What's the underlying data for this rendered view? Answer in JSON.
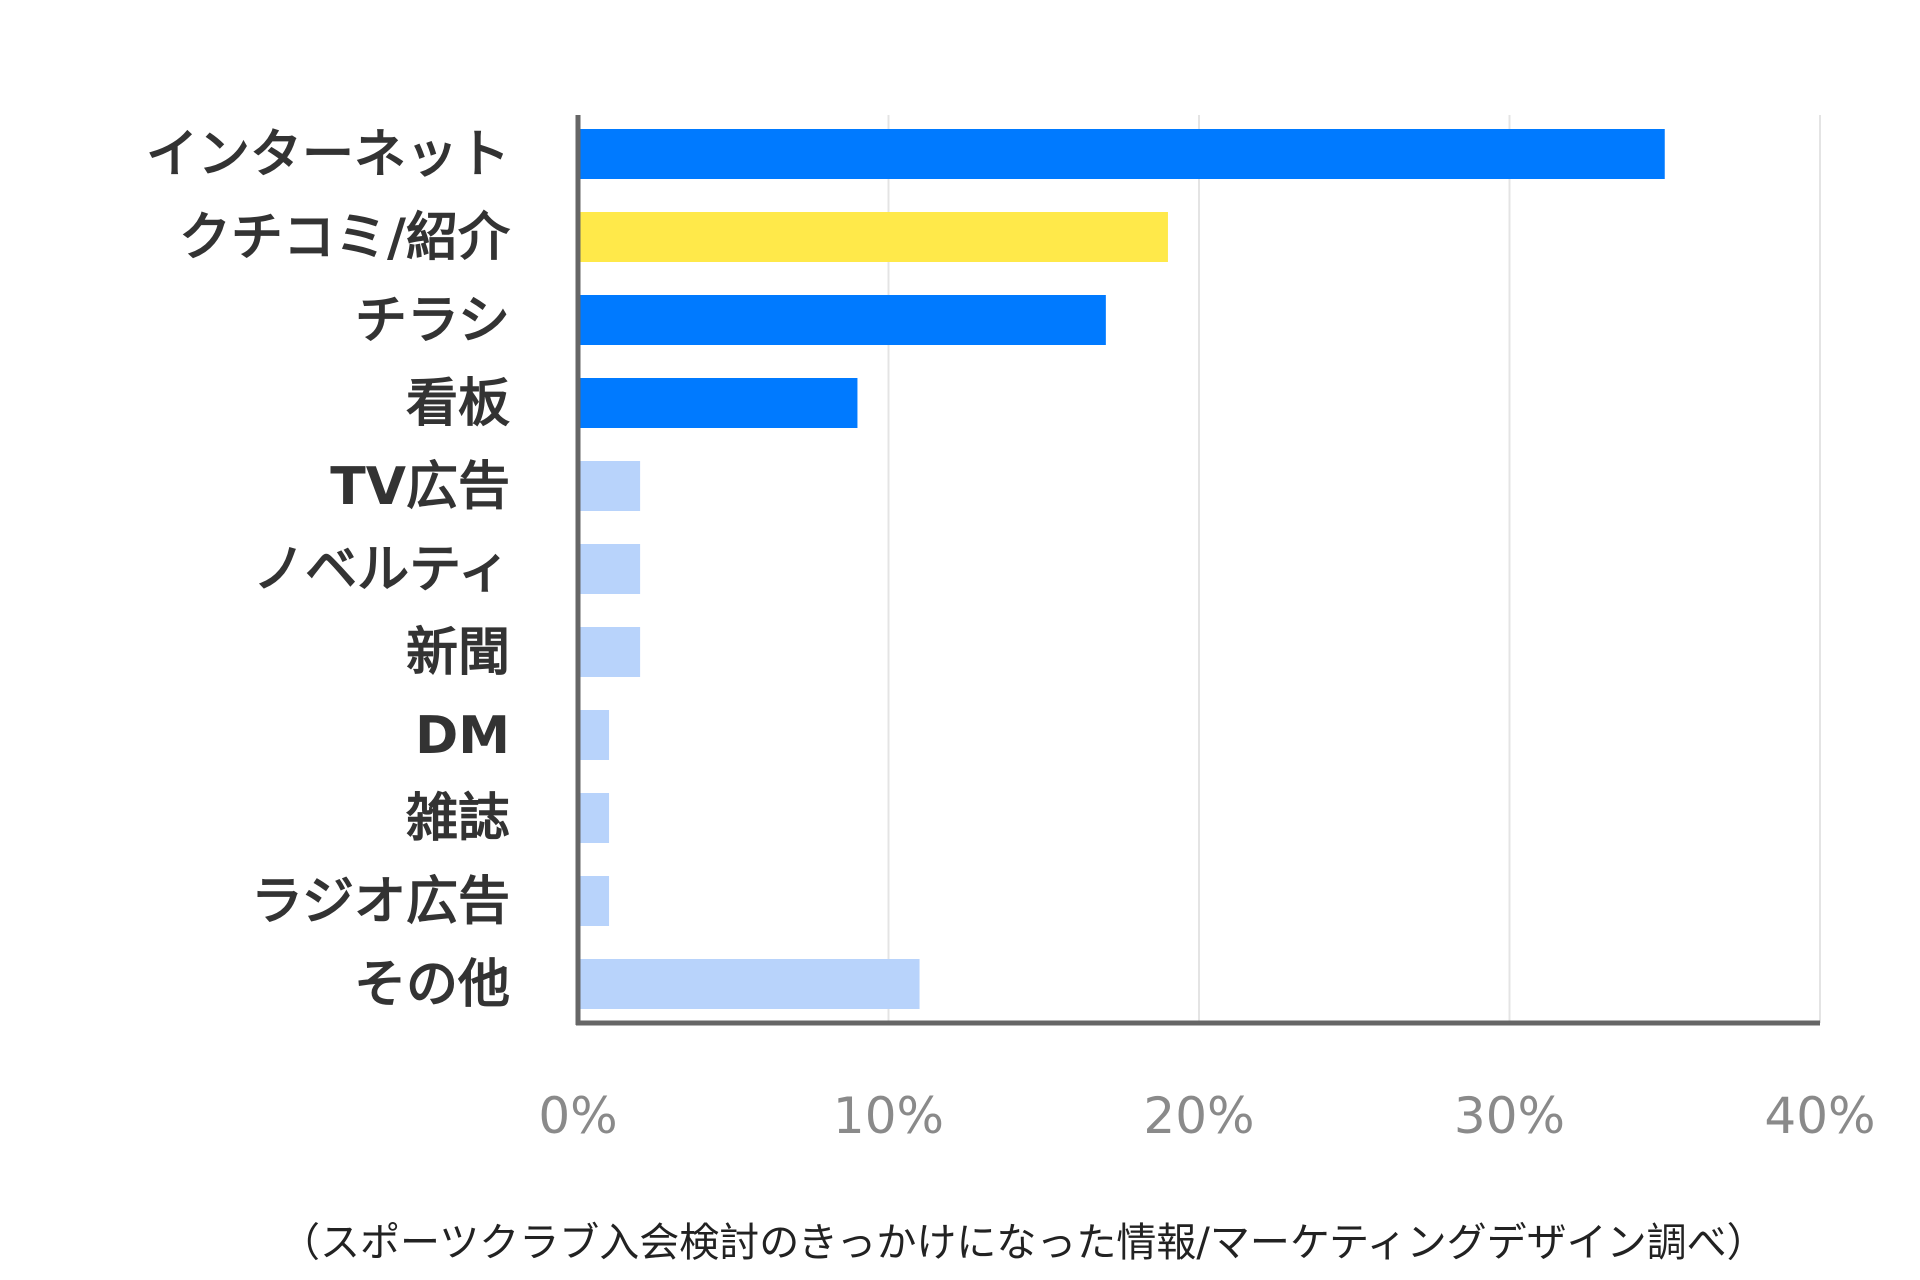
{
  "chart_data": {
    "type": "bar",
    "orientation": "horizontal",
    "categories": [
      "インターネット",
      "クチコミ/紹介",
      "チラシ",
      "看板",
      "TV広告",
      "ノベルティ",
      "新聞",
      "DM",
      "雑誌",
      "ラジオ広告",
      "その他"
    ],
    "values": [
      35,
      19,
      17,
      9,
      2,
      2,
      2,
      1,
      1,
      1,
      11
    ],
    "unit": "%",
    "xlim": [
      0,
      40
    ],
    "x_ticks": [
      "0%",
      "10%",
      "20%",
      "30%",
      "40%"
    ],
    "x_tick_values": [
      0,
      10,
      20,
      30,
      40
    ],
    "bar_colors": [
      "#007aff",
      "#ffe94a",
      "#007aff",
      "#007aff",
      "#b8d3fb",
      "#b8d3fb",
      "#b8d3fb",
      "#b8d3fb",
      "#b8d3fb",
      "#b8d3fb",
      "#b8d3fb"
    ],
    "grid": true,
    "title": "",
    "xlabel": "",
    "ylabel": ""
  },
  "source_note": "（スポーツクラブ入会検討のきっかけになった情報/マーケティングデザイン調べ）"
}
